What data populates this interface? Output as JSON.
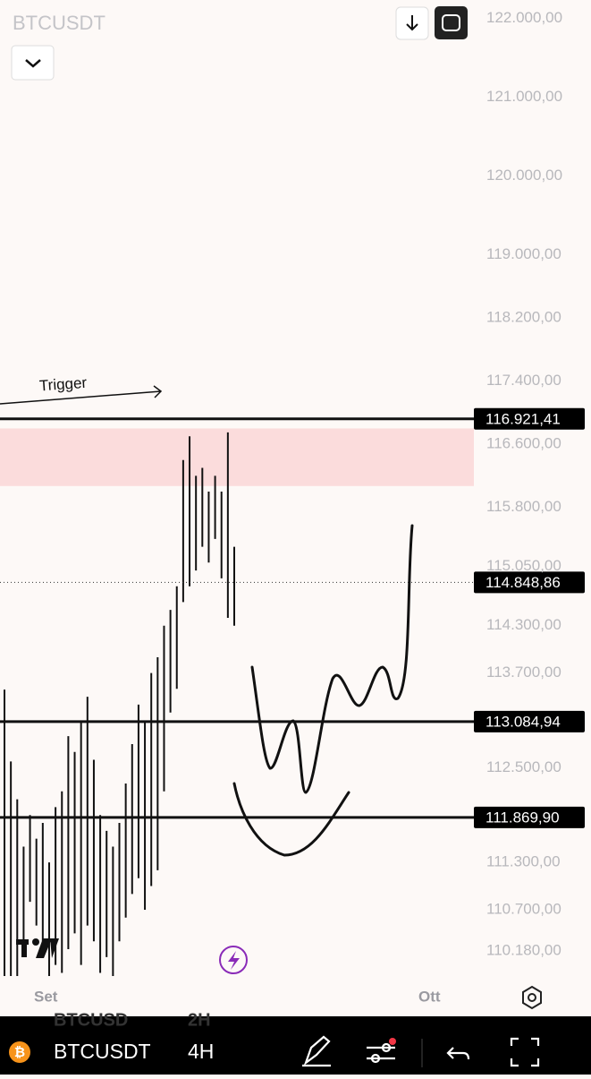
{
  "header": {
    "symbol": "BTCUSDT"
  },
  "chart_data": {
    "type": "candlestick",
    "ylim": [
      109860,
      122230
    ],
    "yticks": [
      {
        "value": 122000,
        "label": "122.000,00"
      },
      {
        "value": 121000,
        "label": "121.000,00"
      },
      {
        "value": 120000,
        "label": "120.000,00"
      },
      {
        "value": 119000,
        "label": "119.000,00"
      },
      {
        "value": 118200,
        "label": "118.200,00"
      },
      {
        "value": 117400,
        "label": "117.400,00"
      },
      {
        "value": 116600,
        "label": "116.600,00"
      },
      {
        "value": 115800,
        "label": "115.800,00"
      },
      {
        "value": 115050,
        "label": "115.050,00"
      },
      {
        "value": 114300,
        "label": "114.300,00"
      },
      {
        "value": 113700,
        "label": "113.700,00"
      },
      {
        "value": 112500,
        "label": "112.500,00"
      },
      {
        "value": 111300,
        "label": "111.300,00"
      },
      {
        "value": 110700,
        "label": "110.700,00"
      },
      {
        "value": 110180,
        "label": "110.180,00"
      }
    ],
    "levels": [
      {
        "value": 116921.41,
        "label": "116.921,41"
      },
      {
        "value": 113084.94,
        "label": "113.084,94"
      },
      {
        "value": 111869.9,
        "label": "111.869,90"
      }
    ],
    "current_price": {
      "value": 114848.86,
      "label": "114.848,86"
    },
    "zone": [
      116070,
      116800
    ],
    "zone_color": "#fbdcdc",
    "low": [
      109800,
      109800,
      109800,
      110300,
      110800,
      110500,
      110300,
      109800,
      110000,
      109900,
      110200,
      110400,
      110000,
      110500,
      110300,
      109900,
      110100,
      109800,
      110300,
      110600,
      110900,
      111100,
      110700,
      111000,
      111200,
      112200,
      113200,
      113500,
      114600,
      114800,
      115000,
      115300,
      115100,
      115400,
      114900,
      114400,
      114300
    ],
    "high": [
      113490,
      112580,
      112100,
      111500,
      111900,
      111600,
      111800,
      111300,
      112000,
      112200,
      112900,
      112700,
      113100,
      113400,
      112600,
      111900,
      111700,
      111500,
      111800,
      112300,
      112800,
      113300,
      113100,
      113700,
      113900,
      114300,
      114500,
      114800,
      116400,
      116700,
      116200,
      116300,
      116000,
      116200,
      116000,
      116750,
      115300
    ],
    "annotation": "Trigger",
    "x_labels": [
      "Set",
      "Ott"
    ]
  },
  "toolbar": {
    "ghost_symbol": "BTCUSD",
    "ghost_interval": "2H",
    "symbol": "BTCUSDT",
    "interval": "4H"
  }
}
